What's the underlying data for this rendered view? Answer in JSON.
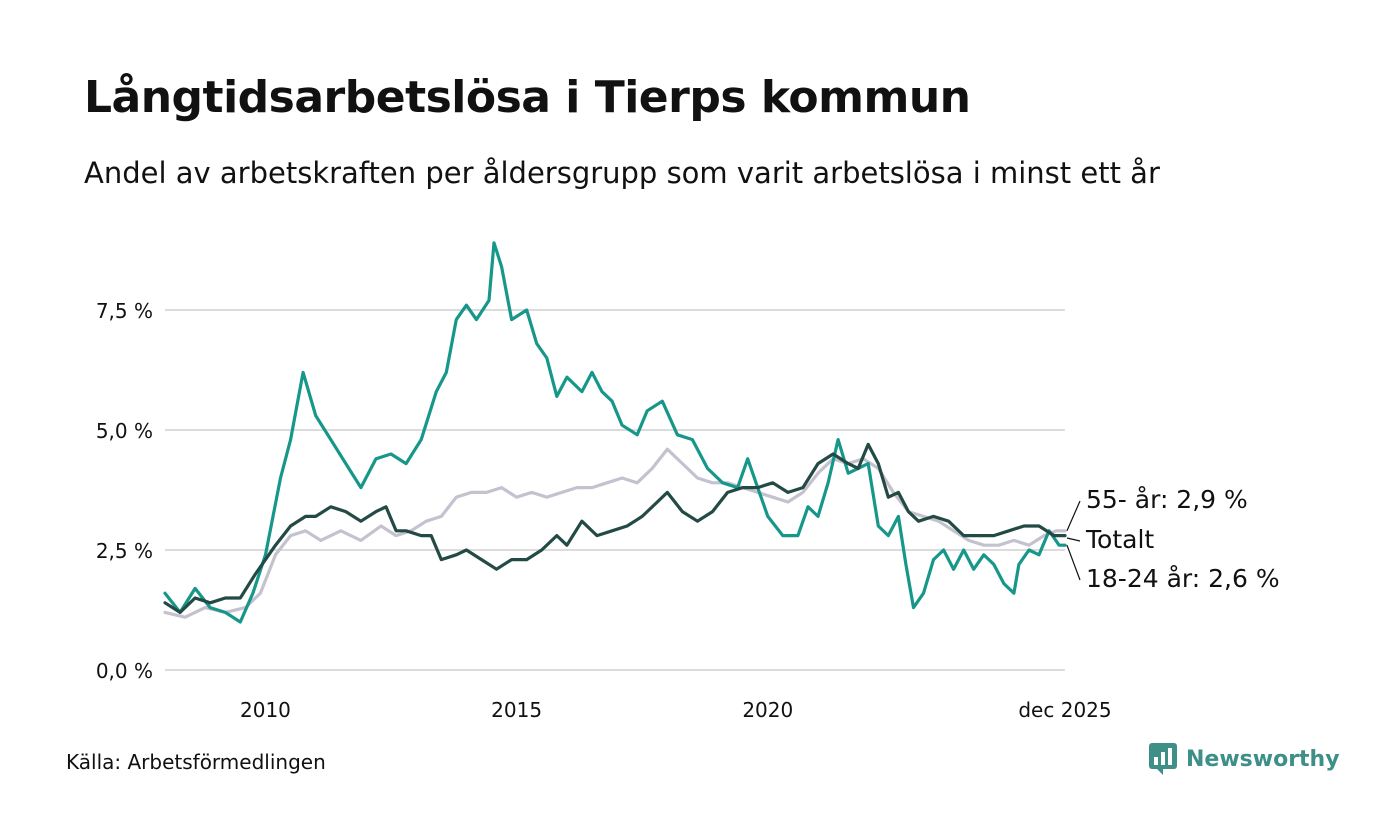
{
  "header": {
    "title": "Långtidsarbetslösa i Tierps kommun",
    "subtitle": "Andel av arbetskraften per åldersgrupp som varit arbetslösa i minst ett år"
  },
  "footer": {
    "source": "Källa: Arbetsförmedlingen",
    "brand": "Newsworthy"
  },
  "colors": {
    "youth": "#16978a",
    "total": "#234a44",
    "senior": "#c4c2cf",
    "grid": "#dcdcdc",
    "brand": "#3d8f87"
  },
  "chart_data": {
    "type": "line",
    "title": "Långtidsarbetslösa i Tierps kommun",
    "xlabel": "",
    "ylabel": "",
    "ylim": [
      0,
      9
    ],
    "y_ticks": [
      0,
      2.5,
      5,
      7.5
    ],
    "y_tick_labels": [
      "0,0 %",
      "2,5 %",
      "5,0 %",
      "7,5 %"
    ],
    "xlim": [
      2008.0,
      2025.917
    ],
    "x_ticks": [
      2010,
      2015,
      2020,
      2025.917
    ],
    "x_tick_labels": [
      "2010",
      "2015",
      "2020",
      "dec 2025"
    ],
    "end_labels": [
      "55- år: 2,9 %",
      "Totalt",
      "18-24 år: 2,6 %"
    ],
    "series": [
      {
        "name": "18-24 år",
        "color_key": "youth",
        "x": [
          2008.0,
          2008.3,
          2008.6,
          2008.9,
          2009.2,
          2009.5,
          2009.75,
          2010.0,
          2010.3,
          2010.5,
          2010.75,
          2011.0,
          2011.3,
          2011.6,
          2011.9,
          2012.2,
          2012.5,
          2012.8,
          2013.1,
          2013.4,
          2013.6,
          2013.8,
          2014.0,
          2014.2,
          2014.45,
          2014.55,
          2014.7,
          2014.9,
          2015.2,
          2015.4,
          2015.6,
          2015.8,
          2016.0,
          2016.3,
          2016.5,
          2016.7,
          2016.9,
          2017.1,
          2017.4,
          2017.6,
          2017.9,
          2018.2,
          2018.5,
          2018.8,
          2019.1,
          2019.4,
          2019.6,
          2019.8,
          2020.0,
          2020.3,
          2020.6,
          2020.8,
          2021.0,
          2021.2,
          2021.4,
          2021.6,
          2021.8,
          2022.0,
          2022.2,
          2022.4,
          2022.6,
          2022.75,
          2022.9,
          2023.1,
          2023.3,
          2023.5,
          2023.7,
          2023.9,
          2024.1,
          2024.3,
          2024.5,
          2024.7,
          2024.9,
          2025.0,
          2025.2,
          2025.4,
          2025.6,
          2025.8,
          2025.917
        ],
        "values": [
          1.6,
          1.2,
          1.7,
          1.3,
          1.2,
          1.0,
          1.6,
          2.4,
          4.0,
          4.8,
          6.2,
          5.3,
          4.8,
          4.3,
          3.8,
          4.4,
          4.5,
          4.3,
          4.8,
          5.8,
          6.2,
          7.3,
          7.6,
          7.3,
          7.7,
          8.9,
          8.4,
          7.3,
          7.5,
          6.8,
          6.5,
          5.7,
          6.1,
          5.8,
          6.2,
          5.8,
          5.6,
          5.1,
          4.9,
          5.4,
          5.6,
          4.9,
          4.8,
          4.2,
          3.9,
          3.8,
          4.4,
          3.8,
          3.2,
          2.8,
          2.8,
          3.4,
          3.2,
          3.9,
          4.8,
          4.1,
          4.2,
          4.3,
          3.0,
          2.8,
          3.2,
          2.2,
          1.3,
          1.6,
          2.3,
          2.5,
          2.1,
          2.5,
          2.1,
          2.4,
          2.2,
          1.8,
          1.6,
          2.2,
          2.5,
          2.4,
          2.9,
          2.6,
          2.6
        ]
      },
      {
        "name": "Totalt",
        "color_key": "total",
        "x": [
          2008.0,
          2008.3,
          2008.6,
          2008.9,
          2009.2,
          2009.5,
          2009.8,
          2010.0,
          2010.2,
          2010.5,
          2010.8,
          2011.0,
          2011.3,
          2011.6,
          2011.9,
          2012.2,
          2012.4,
          2012.6,
          2012.8,
          2013.1,
          2013.3,
          2013.5,
          2013.8,
          2014.0,
          2014.3,
          2014.6,
          2014.9,
          2015.2,
          2015.5,
          2015.8,
          2016.0,
          2016.3,
          2016.6,
          2016.9,
          2017.2,
          2017.5,
          2017.8,
          2018.0,
          2018.3,
          2018.6,
          2018.9,
          2019.2,
          2019.5,
          2019.8,
          2020.1,
          2020.4,
          2020.7,
          2021.0,
          2021.3,
          2021.6,
          2021.8,
          2022.0,
          2022.2,
          2022.4,
          2022.6,
          2022.8,
          2023.0,
          2023.3,
          2023.6,
          2023.9,
          2024.2,
          2024.5,
          2024.8,
          2025.1,
          2025.4,
          2025.7,
          2025.917
        ],
        "values": [
          1.4,
          1.2,
          1.5,
          1.4,
          1.5,
          1.5,
          2.0,
          2.3,
          2.6,
          3.0,
          3.2,
          3.2,
          3.4,
          3.3,
          3.1,
          3.3,
          3.4,
          2.9,
          2.9,
          2.8,
          2.8,
          2.3,
          2.4,
          2.5,
          2.3,
          2.1,
          2.3,
          2.3,
          2.5,
          2.8,
          2.6,
          3.1,
          2.8,
          2.9,
          3.0,
          3.2,
          3.5,
          3.7,
          3.3,
          3.1,
          3.3,
          3.7,
          3.8,
          3.8,
          3.9,
          3.7,
          3.8,
          4.3,
          4.5,
          4.3,
          4.2,
          4.7,
          4.3,
          3.6,
          3.7,
          3.3,
          3.1,
          3.2,
          3.1,
          2.8,
          2.8,
          2.8,
          2.9,
          3.0,
          3.0,
          2.8,
          2.8
        ]
      },
      {
        "name": "55- år",
        "color_key": "senior",
        "x": [
          2008.0,
          2008.4,
          2008.8,
          2009.2,
          2009.6,
          2009.9,
          2010.2,
          2010.5,
          2010.8,
          2011.1,
          2011.5,
          2011.9,
          2012.3,
          2012.6,
          2012.9,
          2013.2,
          2013.5,
          2013.8,
          2014.1,
          2014.4,
          2014.7,
          2015.0,
          2015.3,
          2015.6,
          2015.9,
          2016.2,
          2016.5,
          2016.8,
          2017.1,
          2017.4,
          2017.7,
          2018.0,
          2018.3,
          2018.6,
          2018.9,
          2019.2,
          2019.5,
          2019.8,
          2020.1,
          2020.4,
          2020.7,
          2021.0,
          2021.3,
          2021.6,
          2021.9,
          2022.2,
          2022.5,
          2022.8,
          2023.1,
          2023.4,
          2023.7,
          2024.0,
          2024.3,
          2024.6,
          2024.9,
          2025.2,
          2025.5,
          2025.75,
          2025.917
        ],
        "values": [
          1.2,
          1.1,
          1.3,
          1.2,
          1.3,
          1.6,
          2.4,
          2.8,
          2.9,
          2.7,
          2.9,
          2.7,
          3.0,
          2.8,
          2.9,
          3.1,
          3.2,
          3.6,
          3.7,
          3.7,
          3.8,
          3.6,
          3.7,
          3.6,
          3.7,
          3.8,
          3.8,
          3.9,
          4.0,
          3.9,
          4.2,
          4.6,
          4.3,
          4.0,
          3.9,
          3.9,
          3.8,
          3.7,
          3.6,
          3.5,
          3.7,
          4.1,
          4.4,
          4.3,
          4.4,
          4.2,
          3.7,
          3.3,
          3.2,
          3.1,
          2.9,
          2.7,
          2.6,
          2.6,
          2.7,
          2.6,
          2.8,
          2.9,
          2.9
        ]
      }
    ]
  }
}
